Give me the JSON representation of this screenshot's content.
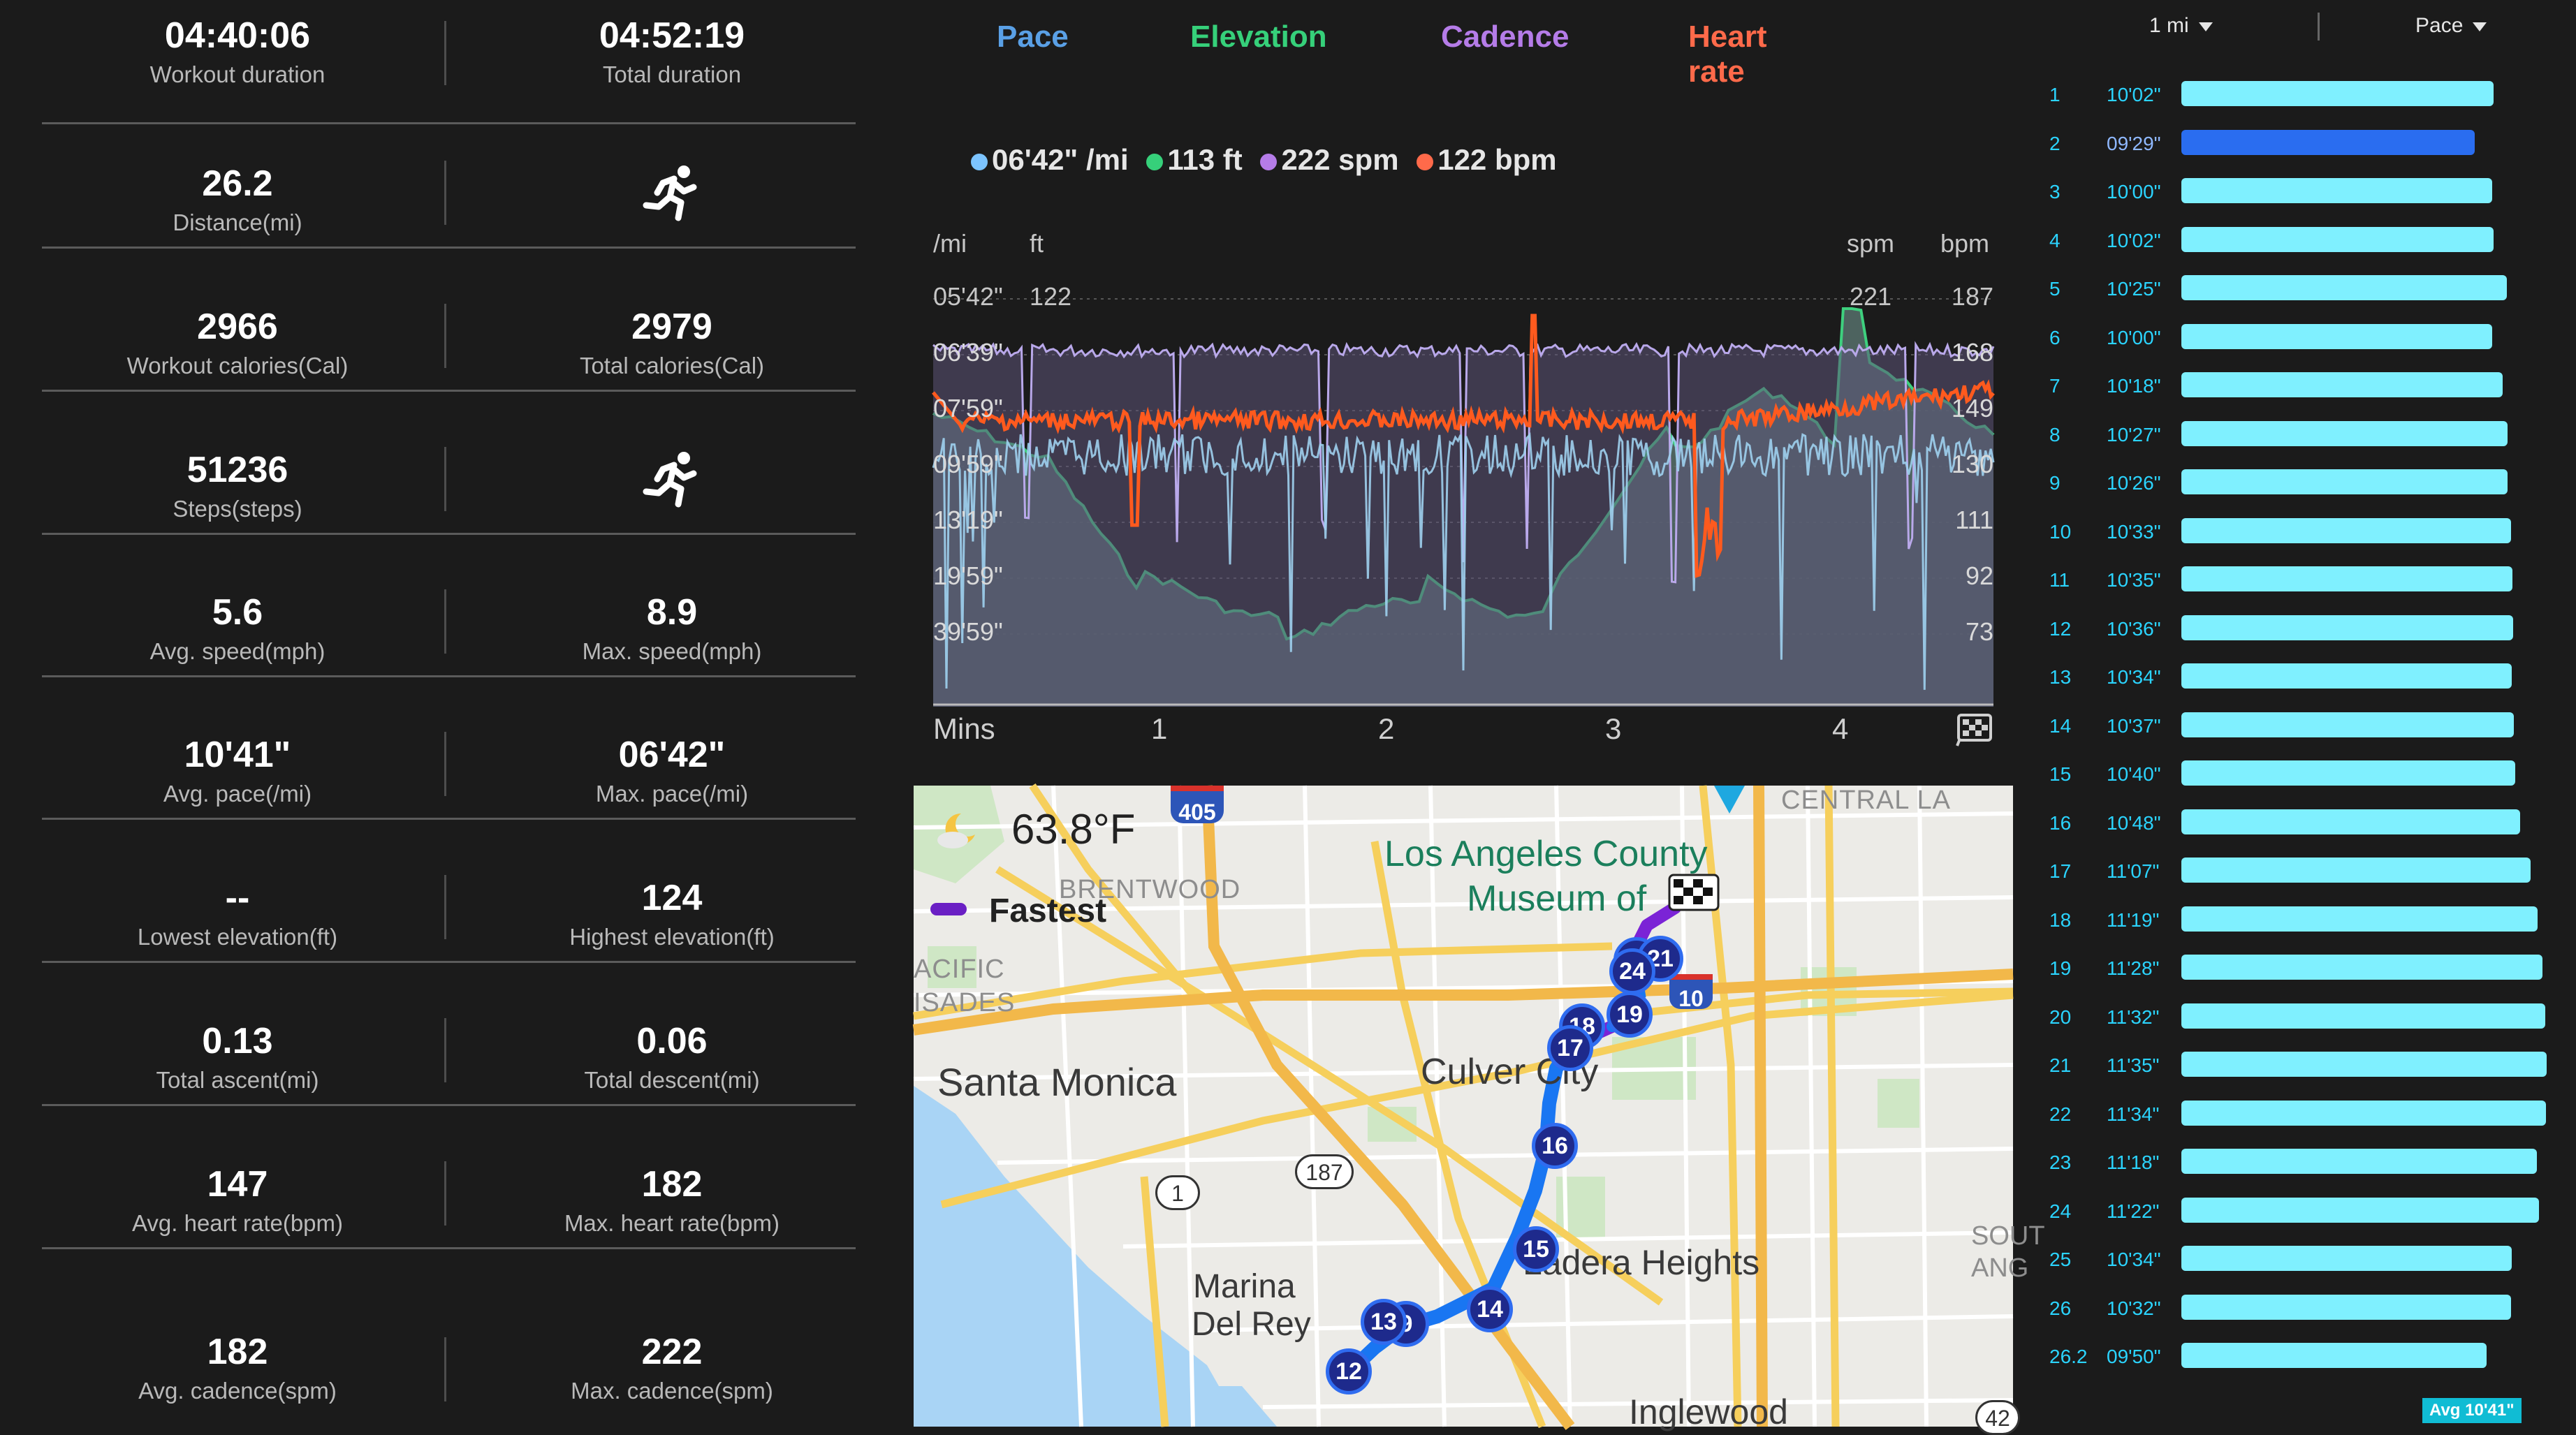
{
  "stats": [
    {
      "left": {
        "value": "04:40:06",
        "label": "Workout duration"
      },
      "right": {
        "value": "04:52:19",
        "label": "Total duration"
      }
    },
    {
      "left": {
        "value": "26.2",
        "label": "Distance(mi)"
      },
      "right": {
        "icon": "running-icon"
      }
    },
    {
      "left": {
        "value": "2966",
        "label": "Workout calories(Cal)"
      },
      "right": {
        "value": "2979",
        "label": "Total calories(Cal)"
      }
    },
    {
      "left": {
        "value": "51236",
        "label": "Steps(steps)"
      },
      "right": {
        "icon": "running-icon"
      }
    },
    {
      "left": {
        "value": "5.6",
        "label": "Avg. speed(mph)"
      },
      "right": {
        "value": "8.9",
        "label": "Max. speed(mph)"
      }
    },
    {
      "left": {
        "value": "10'41\"",
        "label": "Avg. pace(/mi)"
      },
      "right": {
        "value": "06'42\"",
        "label": "Max. pace(/mi)"
      }
    },
    {
      "left": {
        "value": "--",
        "label": "Lowest elevation(ft)"
      },
      "right": {
        "value": "124",
        "label": "Highest elevation(ft)"
      }
    },
    {
      "left": {
        "value": "0.13",
        "label": "Total ascent(mi)"
      },
      "right": {
        "value": "0.06",
        "label": "Total descent(mi)"
      }
    },
    {
      "left": {
        "value": "147",
        "label": "Avg. heart rate(bpm)"
      },
      "right": {
        "value": "182",
        "label": "Max. heart rate(bpm)"
      }
    },
    {
      "left": {
        "value": "182",
        "label": "Avg. cadence(spm)"
      },
      "right": {
        "value": "222",
        "label": "Max. cadence(spm)"
      }
    }
  ],
  "tabs": [
    {
      "label": "Pace",
      "color": "#5aa0e6"
    },
    {
      "label": "Elevation",
      "color": "#36d07a"
    },
    {
      "label": "Cadence",
      "color": "#b57ce8"
    },
    {
      "label": "Heart rate",
      "color": "#ff6a4a"
    }
  ],
  "legend": [
    {
      "text": "06'42\" /mi",
      "color": "#7cc4ff"
    },
    {
      "text": "113 ft",
      "color": "#36d07a"
    },
    {
      "text": "222 spm",
      "color": "#b57ce8"
    },
    {
      "text": "122 bpm",
      "color": "#ff6a4a"
    }
  ],
  "axes": {
    "left_unit_1": "/mi",
    "left_unit_2": "ft",
    "right_unit_1": "spm",
    "right_unit_2": "bpm",
    "pace_ticks": [
      "05'42\"",
      "06'39\"",
      "07'59\"",
      "09'59\"",
      "13'19\"",
      "19'59\"",
      "39'59\""
    ],
    "elev_top": "122",
    "spm_top": "221",
    "bpm_ticks": [
      "187",
      "168",
      "149",
      "130",
      "111",
      "92",
      "73"
    ],
    "x_label": "Mins",
    "x_ticks": [
      "1",
      "2",
      "3",
      "4"
    ]
  },
  "map": {
    "temperature": "63.8°F",
    "route_legend": "Fastest",
    "labels": [
      "Los Angeles County",
      "Museum of",
      "BRENTWOOD",
      "CENTRAL LA",
      "ACIFIC",
      "ISADES",
      "Santa Monica",
      "Culver City",
      "Ladera Heights",
      "Marina",
      "Del Rey",
      "Inglewood",
      "SOUT",
      "ANG"
    ],
    "shields": [
      "405",
      "10",
      "1",
      "187",
      "42"
    ],
    "markers": [
      "24",
      "21",
      "19",
      "18",
      "17",
      "16",
      "15",
      "14",
      "13",
      "9",
      "12",
      "22"
    ]
  },
  "splits": {
    "distance_selector": "1 mi",
    "metric_selector": "Pace",
    "avg_label": "Avg 10'41\"",
    "rows": [
      {
        "mile": "1",
        "pace": "10'02\"",
        "seconds": 602
      },
      {
        "mile": "2",
        "pace": "09'29\"",
        "seconds": 569
      },
      {
        "mile": "3",
        "pace": "10'00\"",
        "seconds": 600
      },
      {
        "mile": "4",
        "pace": "10'02\"",
        "seconds": 602
      },
      {
        "mile": "5",
        "pace": "10'25\"",
        "seconds": 625
      },
      {
        "mile": "6",
        "pace": "10'00\"",
        "seconds": 600
      },
      {
        "mile": "7",
        "pace": "10'18\"",
        "seconds": 618
      },
      {
        "mile": "8",
        "pace": "10'27\"",
        "seconds": 627
      },
      {
        "mile": "9",
        "pace": "10'26\"",
        "seconds": 626
      },
      {
        "mile": "10",
        "pace": "10'33\"",
        "seconds": 633
      },
      {
        "mile": "11",
        "pace": "10'35\"",
        "seconds": 635
      },
      {
        "mile": "12",
        "pace": "10'36\"",
        "seconds": 636
      },
      {
        "mile": "13",
        "pace": "10'34\"",
        "seconds": 634
      },
      {
        "mile": "14",
        "pace": "10'37\"",
        "seconds": 637
      },
      {
        "mile": "15",
        "pace": "10'40\"",
        "seconds": 640
      },
      {
        "mile": "16",
        "pace": "10'48\"",
        "seconds": 648
      },
      {
        "mile": "17",
        "pace": "11'07\"",
        "seconds": 667
      },
      {
        "mile": "18",
        "pace": "11'19\"",
        "seconds": 679
      },
      {
        "mile": "19",
        "pace": "11'28\"",
        "seconds": 688
      },
      {
        "mile": "20",
        "pace": "11'32\"",
        "seconds": 692
      },
      {
        "mile": "21",
        "pace": "11'35\"",
        "seconds": 695
      },
      {
        "mile": "22",
        "pace": "11'34\"",
        "seconds": 694
      },
      {
        "mile": "23",
        "pace": "11'18\"",
        "seconds": 678
      },
      {
        "mile": "24",
        "pace": "11'22\"",
        "seconds": 682
      },
      {
        "mile": "25",
        "pace": "10'34\"",
        "seconds": 634
      },
      {
        "mile": "26",
        "pace": "10'32\"",
        "seconds": 632
      },
      {
        "mile": "26.2",
        "pace": "09'50\"",
        "seconds": 590
      }
    ],
    "highlight_index": 1
  }
}
